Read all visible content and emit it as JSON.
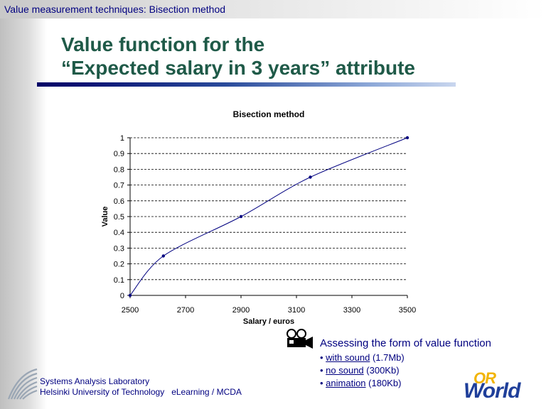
{
  "header": {
    "section_title": "Value measurement techniques: Bisection method"
  },
  "slide": {
    "title_line1": "Value function for the",
    "title_line2": "“Expected salary in 3 years” attribute"
  },
  "chart_data": {
    "type": "line",
    "title": "Bisection method",
    "xlabel": "Salary / euros",
    "ylabel": "Value",
    "xlim": [
      2500,
      3500
    ],
    "ylim": [
      0,
      1
    ],
    "x_ticks": [
      2500,
      2700,
      2900,
      3100,
      3300,
      3500
    ],
    "x_tick_labels": [
      "2500",
      "2700",
      "2900",
      "3100",
      "3300",
      "3500"
    ],
    "y_ticks": [
      0,
      0.1,
      0.2,
      0.3,
      0.4,
      0.5,
      0.6,
      0.7,
      0.8,
      0.9,
      1
    ],
    "y_tick_labels": [
      "0",
      "0.1",
      "0.2",
      "0.3",
      "0.4",
      "0.5",
      "0.6",
      "0.7",
      "0.8",
      "0.9",
      "1"
    ],
    "grid": "horizontal-dashed",
    "legend": "none",
    "series": [
      {
        "x": [
          2500,
          2620,
          2900,
          3150,
          3500
        ],
        "y": [
          0,
          0.25,
          0.5,
          0.75,
          1
        ],
        "color": "#000080"
      }
    ]
  },
  "assessment": {
    "title": "Assessing the form of value function",
    "items": [
      {
        "bullet": "• ",
        "link": "with sound",
        "size": " (1.7Mb)"
      },
      {
        "bullet": "• ",
        "link": "no sound",
        "size": " (300Kb)"
      },
      {
        "bullet": "• ",
        "link": "animation",
        "size": " (180Kb)"
      }
    ],
    "icon": "video-camera-icon"
  },
  "footer": {
    "lab": "Systems Analysis Laboratory",
    "university": "Helsinki University of Technology",
    "course": "eLearning / MCDA",
    "logo_icon": "hut-logo-icon",
    "brand_or": "OR",
    "brand_world": "World"
  },
  "colors": {
    "header_text": "#000080",
    "title_text": "#1f5a48",
    "series_line": "#000080",
    "underline_dark": "#000066"
  }
}
